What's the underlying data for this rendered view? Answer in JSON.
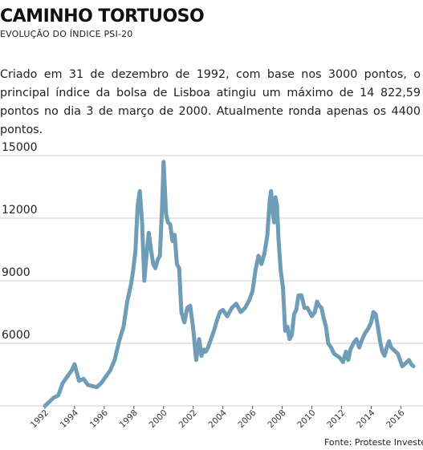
{
  "header": {
    "title": "CAMINHO TORTUOSO",
    "subtitle": "EVOLUÇÃO DO ÍNDICE PSI-20"
  },
  "description": "Criado em 31 de dezembro de 1992, com base nos 3000 pontos, o principal índice da bolsa de Lisboa atingiu um máximo de 14 822,59 pontos no dia 3 de março de 2000. Atualmente ronda apenas os 4400 pontos.",
  "source": "Fonte:  Proteste Investe",
  "chart_data": {
    "type": "line",
    "title": "CAMINHO TORTUOSO",
    "subtitle": "EVOLUÇÃO DO ÍNDICE PSI-20",
    "ylim": [
      3000,
      15000
    ],
    "xlim": [
      1992.0,
      2016.9
    ],
    "yticks": [
      "15000",
      "12000",
      "9000",
      "6000"
    ],
    "ytick_values": [
      15000,
      12000,
      9000,
      6000
    ],
    "xticks": [
      "1992",
      "1994",
      "1996",
      "1998",
      "2000",
      "2002",
      "2004",
      "2006",
      "2008",
      "2010",
      "2012",
      "2014",
      "2016"
    ],
    "xtick_values": [
      1992,
      1994,
      1996,
      1998,
      2000,
      2002,
      2004,
      2006,
      2008,
      2010,
      2012,
      2014,
      2016
    ],
    "grid": "horizontal",
    "line_color": "#6f9db8",
    "series": [
      {
        "x": [
          1992.0,
          1992.3,
          1992.6,
          1992.9,
          1993.2,
          1993.5,
          1993.8,
          1994.0,
          1994.3,
          1994.6,
          1994.9,
          1995.2,
          1995.5,
          1995.8,
          1996.1,
          1996.4,
          1996.7,
          1997.0,
          1997.3,
          1997.55,
          1997.8,
          1997.95,
          1998.1,
          1998.25,
          1998.4,
          1998.55,
          1998.7,
          1998.85,
          1999.0,
          1999.15,
          1999.3,
          1999.45,
          1999.6,
          1999.75,
          1999.9,
          2000.0,
          2000.17,
          2000.3,
          2000.45,
          2000.6,
          2000.75,
          2000.9,
          2001.05,
          2001.2,
          2001.4,
          2001.6,
          2001.8,
          2002.0,
          2002.2,
          2002.4,
          2002.55,
          2002.7,
          2002.85,
          2003.0,
          2003.2,
          2003.4,
          2003.6,
          2003.8,
          2004.0,
          2004.3,
          2004.6,
          2004.9,
          2005.2,
          2005.5,
          2005.8,
          2006.0,
          2006.2,
          2006.4,
          2006.6,
          2006.8,
          2007.0,
          2007.15,
          2007.25,
          2007.35,
          2007.45,
          2007.55,
          2007.65,
          2007.75,
          2007.9,
          2008.05,
          2008.2,
          2008.35,
          2008.5,
          2008.65,
          2008.8,
          2008.95,
          2009.1,
          2009.3,
          2009.5,
          2009.7,
          2009.85,
          2010.0,
          2010.2,
          2010.35,
          2010.5,
          2010.65,
          2010.8,
          2010.95,
          2011.1,
          2011.3,
          2011.5,
          2011.7,
          2011.9,
          2012.1,
          2012.3,
          2012.45,
          2012.6,
          2012.8,
          2013.0,
          2013.2,
          2013.4,
          2013.6,
          2013.8,
          2014.0,
          2014.15,
          2014.3,
          2014.45,
          2014.6,
          2014.75,
          2014.9,
          2015.05,
          2015.2,
          2015.35,
          2015.5,
          2015.65,
          2015.8,
          2015.95,
          2016.1,
          2016.25,
          2016.4,
          2016.55,
          2016.7,
          2016.85
        ],
        "values": [
          3000,
          3200,
          3400,
          3500,
          4100,
          4400,
          4700,
          5000,
          4200,
          4300,
          4000,
          3950,
          3900,
          4100,
          4400,
          4700,
          5200,
          6100,
          6800,
          8000,
          8800,
          9500,
          10400,
          12600,
          13300,
          11800,
          9000,
          10200,
          11300,
          10500,
          9800,
          9600,
          10000,
          10200,
          12500,
          14700,
          12200,
          11800,
          11700,
          10900,
          11200,
          9800,
          9600,
          7500,
          7000,
          7700,
          7800,
          6700,
          5200,
          6200,
          5400,
          5700,
          5600,
          5800,
          6200,
          6600,
          7100,
          7500,
          7600,
          7300,
          7700,
          7900,
          7500,
          7700,
          8100,
          8500,
          9500,
          10200,
          9800,
          10300,
          11200,
          12800,
          13300,
          12400,
          11800,
          13000,
          12600,
          11000,
          9500,
          8700,
          6600,
          6800,
          6200,
          6400,
          7400,
          7600,
          8300,
          8300,
          7700,
          7700,
          7500,
          7300,
          7500,
          8000,
          7800,
          7700,
          7200,
          6800,
          6000,
          5800,
          5500,
          5400,
          5300,
          5100,
          5600,
          5200,
          5700,
          6000,
          6200,
          5800,
          6200,
          6500,
          6700,
          7000,
          7500,
          7400,
          6800,
          6100,
          5600,
          5400,
          5800,
          6100,
          5800,
          5700,
          5600,
          5500,
          5200,
          4900,
          5000,
          5100,
          5200,
          5000,
          4900
        ]
      }
    ]
  }
}
